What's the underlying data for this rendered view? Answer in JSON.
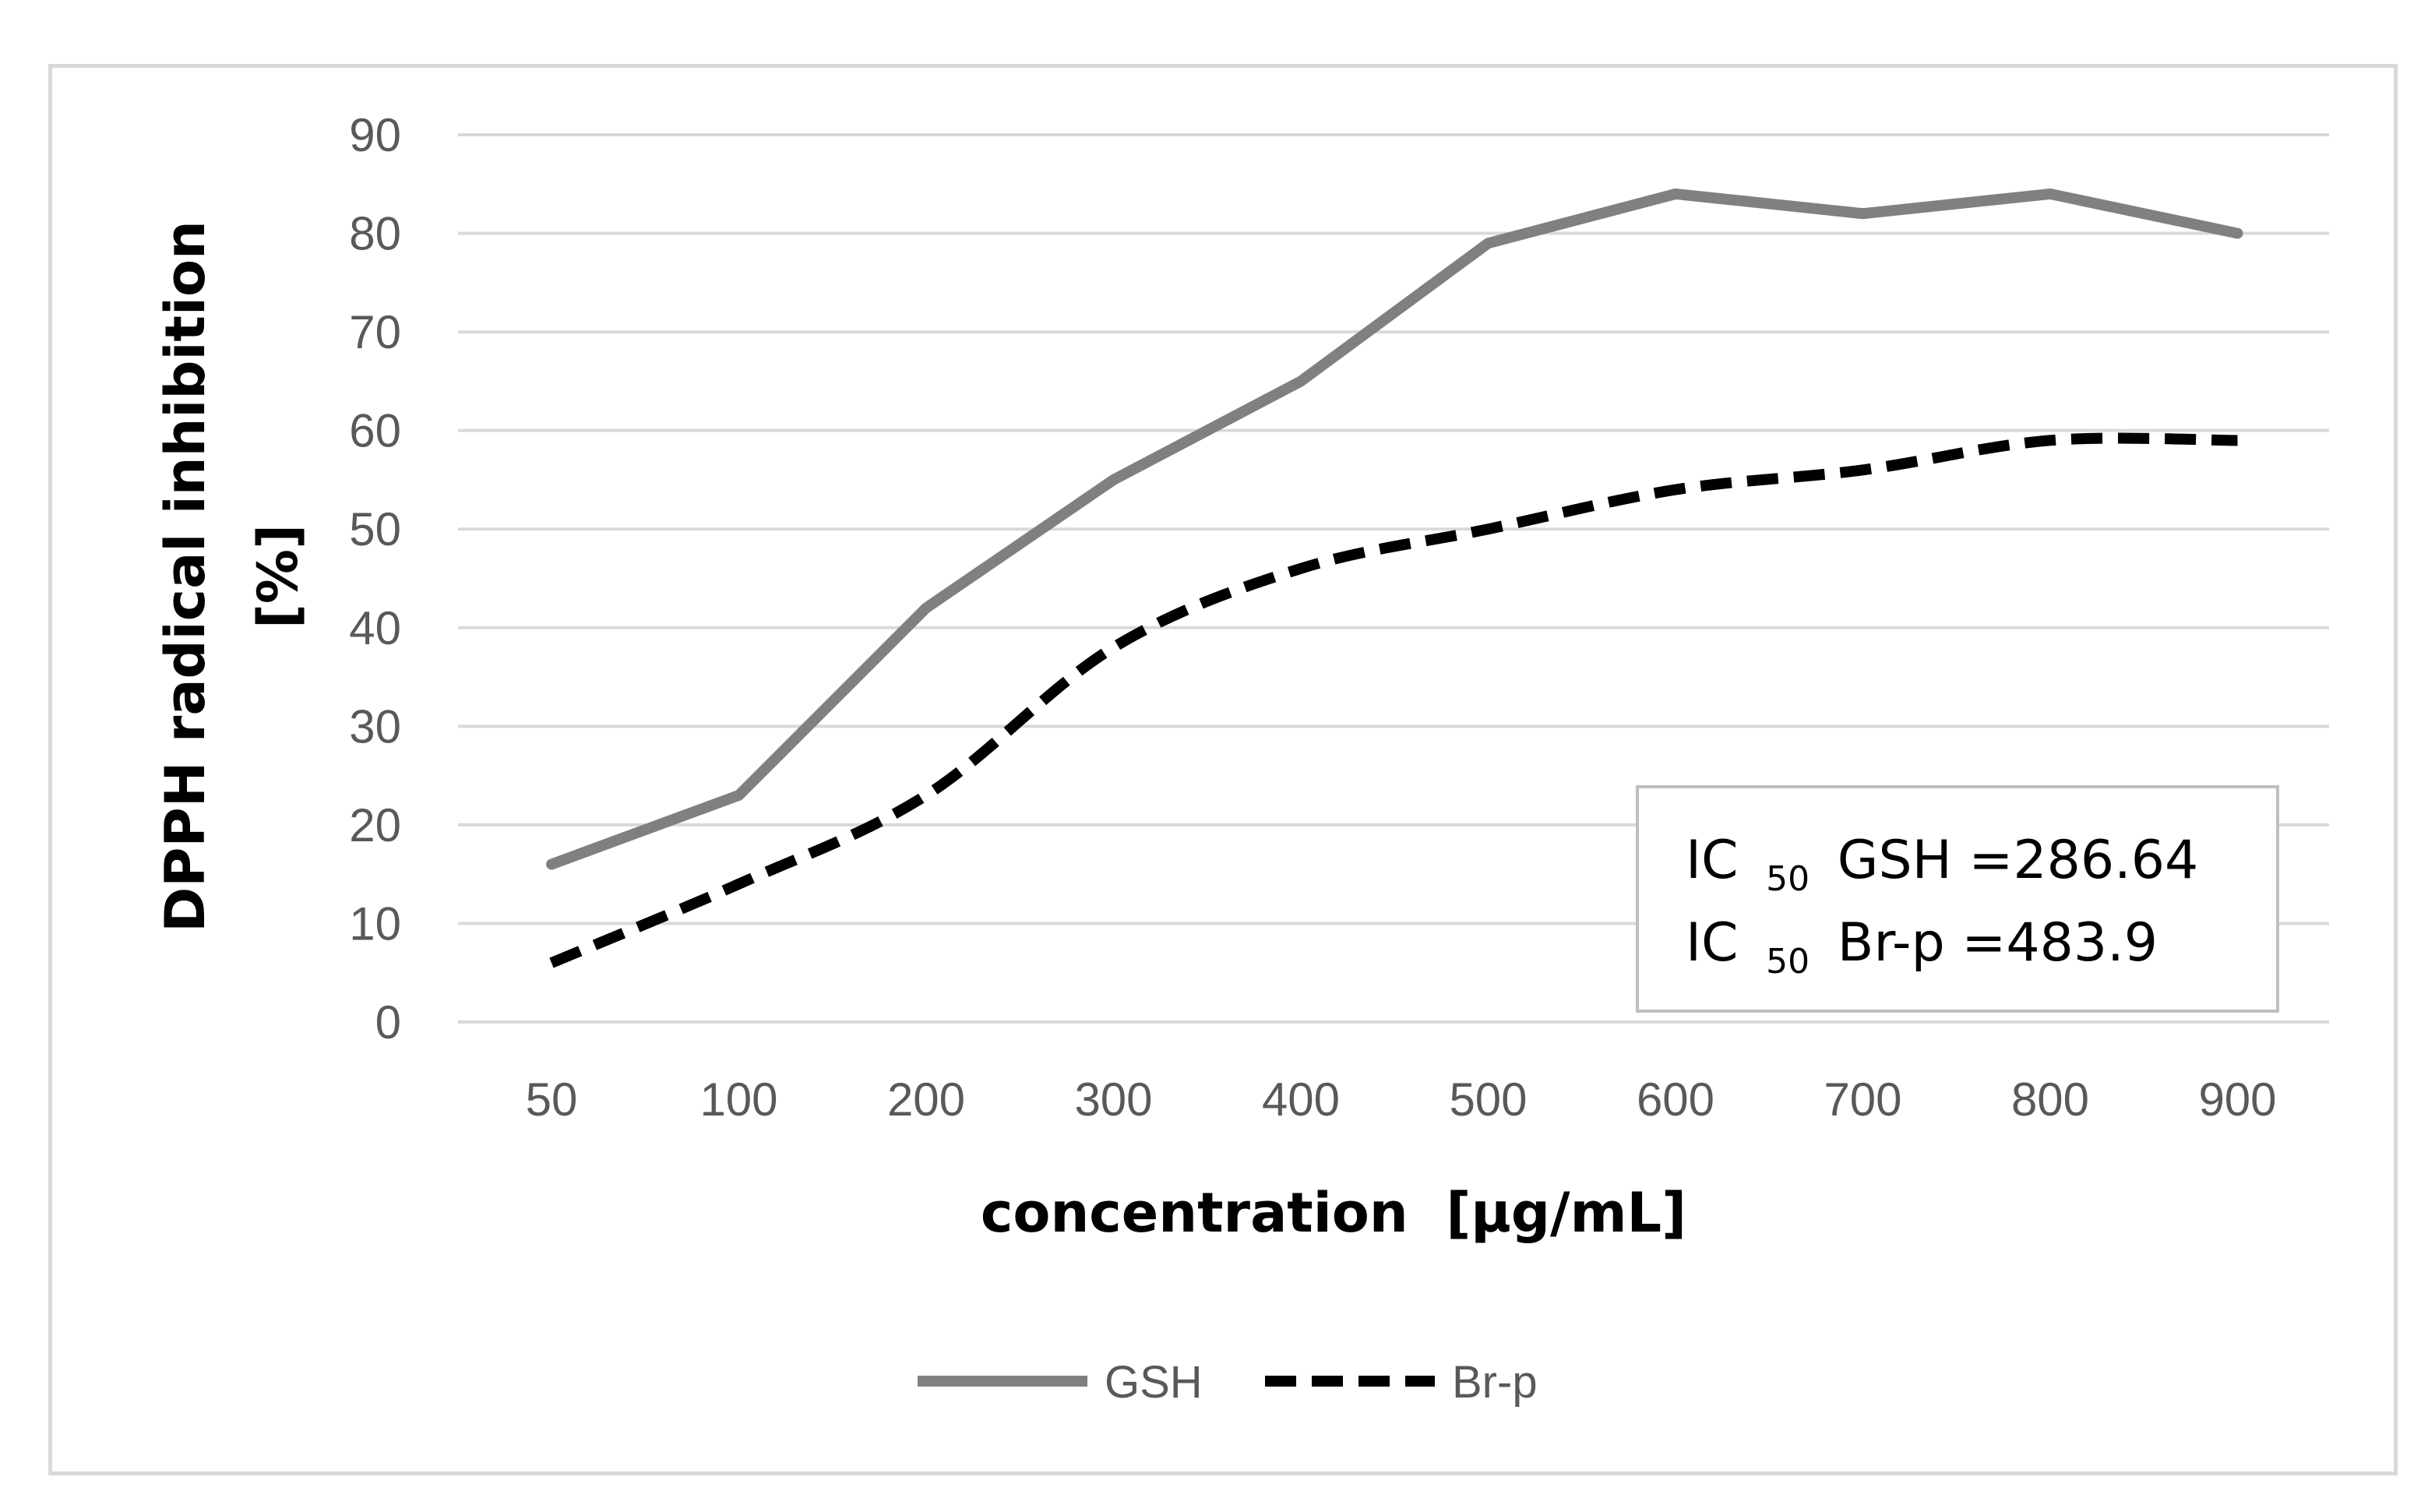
{
  "chart_data": {
    "type": "line",
    "title": "",
    "xlabel": "concentration  [µg/mL]",
    "ylabel_lines": [
      "DPPH radical inhibition",
      "[%]"
    ],
    "categories": [
      "50",
      "100",
      "200",
      "300",
      "400",
      "500",
      "600",
      "700",
      "800",
      "900"
    ],
    "ylim": [
      0,
      90
    ],
    "yticks": [
      "0",
      "10",
      "20",
      "30",
      "40",
      "50",
      "60",
      "70",
      "80",
      "90"
    ],
    "grid": true,
    "legend_position": "bottom",
    "series": [
      {
        "name": "GSH",
        "color": "#808080",
        "style": "solid",
        "values": [
          16,
          23,
          42,
          55,
          65,
          79,
          84,
          82,
          84,
          80
        ]
      },
      {
        "name": "Br-p",
        "color": "#000000",
        "style": "dashed",
        "values": [
          6,
          14,
          23,
          38,
          46,
          50,
          54,
          56,
          59,
          59
        ]
      }
    ],
    "annotation": {
      "lines": [
        {
          "prefix": "IC",
          "sub": "50",
          "rest": "GSH =286.64"
        },
        {
          "prefix": "IC",
          "sub": "50",
          "rest": "Br-p =483.9"
        }
      ],
      "position": "bottom-right"
    }
  }
}
